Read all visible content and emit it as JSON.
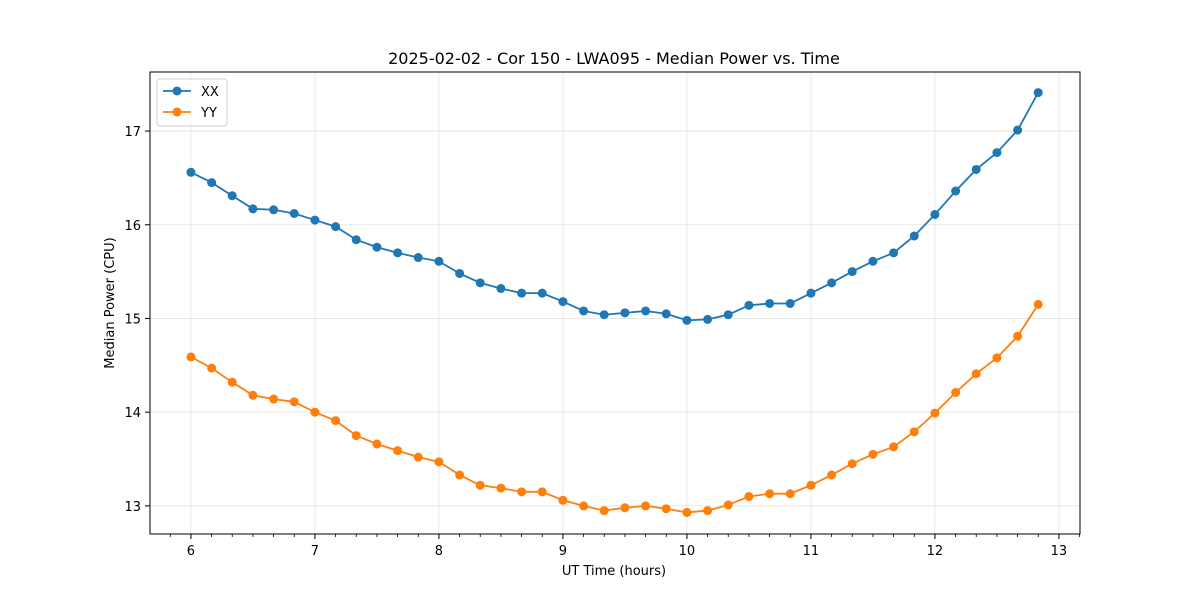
{
  "chart_data": {
    "type": "line",
    "title": "2025-02-02 - Cor 150 - LWA095 - Median Power vs. Time",
    "xlabel": "UT Time (hours)",
    "ylabel": "Median Power (CPU)",
    "xlim": [
      5.67,
      13.17
    ],
    "ylim": [
      12.7,
      17.63
    ],
    "xticks": [
      6,
      7,
      8,
      9,
      10,
      11,
      12,
      13
    ],
    "yticks": [
      13,
      14,
      15,
      16,
      17
    ],
    "grid": true,
    "legend_position": "top-left",
    "x": [
      6.0,
      6.167,
      6.333,
      6.5,
      6.667,
      6.833,
      7.0,
      7.167,
      7.333,
      7.5,
      7.667,
      7.833,
      8.0,
      8.167,
      8.333,
      8.5,
      8.667,
      8.833,
      9.0,
      9.167,
      9.333,
      9.5,
      9.667,
      9.833,
      10.0,
      10.167,
      10.333,
      10.5,
      10.667,
      10.833,
      11.0,
      11.167,
      11.333,
      11.5,
      11.667,
      11.833,
      12.0,
      12.167,
      12.333,
      12.5,
      12.667,
      12.833
    ],
    "series": [
      {
        "name": "XX",
        "color": "#1f77b4",
        "values": [
          16.56,
          16.45,
          16.31,
          16.17,
          16.16,
          16.12,
          16.05,
          15.98,
          15.84,
          15.76,
          15.7,
          15.65,
          15.61,
          15.48,
          15.38,
          15.32,
          15.27,
          15.27,
          15.18,
          15.08,
          15.04,
          15.06,
          15.08,
          15.05,
          14.98,
          14.99,
          15.04,
          15.14,
          15.16,
          15.16,
          15.27,
          15.38,
          15.5,
          15.61,
          15.7,
          15.88,
          16.11,
          16.36,
          16.59,
          16.77,
          17.01,
          17.41
        ]
      },
      {
        "name": "YY",
        "color": "#ff7f0e",
        "values": [
          14.59,
          14.47,
          14.32,
          14.18,
          14.14,
          14.11,
          14.0,
          13.91,
          13.75,
          13.66,
          13.59,
          13.52,
          13.47,
          13.33,
          13.22,
          13.19,
          13.15,
          13.15,
          13.06,
          13.0,
          12.95,
          12.98,
          13.0,
          12.97,
          12.93,
          12.95,
          13.01,
          13.1,
          13.13,
          13.13,
          13.22,
          13.33,
          13.45,
          13.55,
          13.63,
          13.79,
          13.99,
          14.21,
          14.41,
          14.58,
          14.81,
          15.15
        ]
      }
    ]
  }
}
